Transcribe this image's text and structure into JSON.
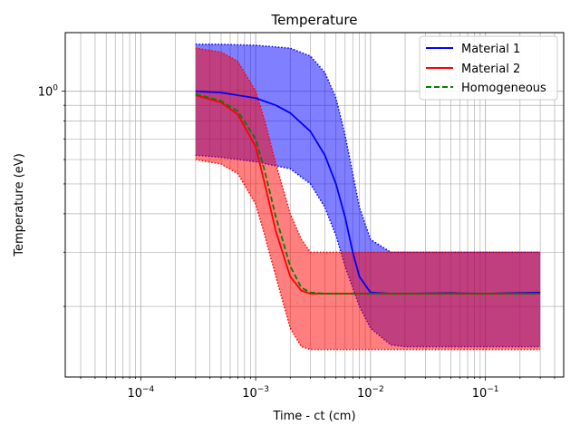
{
  "chart_data": {
    "type": "line",
    "title": "Temperature",
    "xlabel": "Time - ct (cm)",
    "ylabel": "Temperature (eV)",
    "xscale": "log",
    "yscale": "log",
    "xlim": [
      2.2e-05,
      0.48
    ],
    "ylim": [
      0.118,
      1.55
    ],
    "grid": "major and minor",
    "legend_position": "top-right",
    "x_ticks": [
      {
        "value": 0.0001,
        "base": "10",
        "exp": "−4"
      },
      {
        "value": 0.001,
        "base": "10",
        "exp": "−3"
      },
      {
        "value": 0.01,
        "base": "10",
        "exp": "−2"
      },
      {
        "value": 0.1,
        "base": "10",
        "exp": "−1"
      }
    ],
    "y_ticks": [
      {
        "value": 1.0,
        "label": "10",
        "exp": "0"
      }
    ],
    "series": [
      {
        "name": "Material 1",
        "color": "#0000ff",
        "style": "solid",
        "x": [
          0.0003,
          0.0005,
          0.001,
          0.0015,
          0.002,
          0.003,
          0.004,
          0.005,
          0.006,
          0.007,
          0.008,
          0.01,
          0.015,
          0.02,
          0.05,
          0.1,
          0.3
        ],
        "y": [
          1.0,
          0.99,
          0.95,
          0.9,
          0.85,
          0.74,
          0.62,
          0.5,
          0.39,
          0.3,
          0.25,
          0.222,
          0.22,
          0.22,
          0.221,
          0.22,
          0.222
        ]
      },
      {
        "name": "Material 2",
        "color": "#ff0000",
        "style": "solid",
        "x": [
          0.0003,
          0.0005,
          0.0007,
          0.001,
          0.0012,
          0.0015,
          0.002,
          0.0025,
          0.003,
          0.004,
          0.01,
          0.1,
          0.3
        ],
        "y": [
          0.97,
          0.92,
          0.84,
          0.66,
          0.5,
          0.35,
          0.25,
          0.225,
          0.22,
          0.22,
          0.22,
          0.22,
          0.22
        ]
      },
      {
        "name": "Homogeneous",
        "color": "#007f00",
        "style": "dashed",
        "x": [
          0.0003,
          0.0005,
          0.0007,
          0.001,
          0.0012,
          0.0015,
          0.002,
          0.0025,
          0.003,
          0.004,
          0.01,
          0.1,
          0.3
        ],
        "y": [
          0.98,
          0.93,
          0.86,
          0.7,
          0.55,
          0.39,
          0.27,
          0.23,
          0.222,
          0.22,
          0.22,
          0.22,
          0.22
        ]
      }
    ],
    "bands": [
      {
        "series": "Material 1",
        "color": "#0000ff",
        "x": [
          0.0003,
          0.0005,
          0.001,
          0.002,
          0.003,
          0.004,
          0.005,
          0.006,
          0.008,
          0.01,
          0.015,
          0.02,
          0.05,
          0.1,
          0.3
        ],
        "upper": [
          1.42,
          1.42,
          1.41,
          1.38,
          1.3,
          1.15,
          0.95,
          0.72,
          0.42,
          0.33,
          0.3,
          0.3,
          0.3,
          0.3,
          0.3
        ],
        "lower": [
          0.62,
          0.61,
          0.59,
          0.56,
          0.5,
          0.42,
          0.34,
          0.27,
          0.2,
          0.17,
          0.15,
          0.148,
          0.148,
          0.148,
          0.148
        ]
      },
      {
        "series": "Material 2",
        "color": "#ff0000",
        "x": [
          0.0003,
          0.0005,
          0.0007,
          0.001,
          0.0012,
          0.0015,
          0.002,
          0.0025,
          0.003,
          0.004,
          0.01,
          0.1,
          0.3
        ],
        "upper": [
          1.38,
          1.34,
          1.25,
          1.0,
          0.8,
          0.58,
          0.4,
          0.33,
          0.3,
          0.3,
          0.3,
          0.3,
          0.3
        ],
        "lower": [
          0.6,
          0.58,
          0.54,
          0.43,
          0.34,
          0.25,
          0.17,
          0.148,
          0.145,
          0.145,
          0.145,
          0.145,
          0.145
        ]
      }
    ]
  }
}
